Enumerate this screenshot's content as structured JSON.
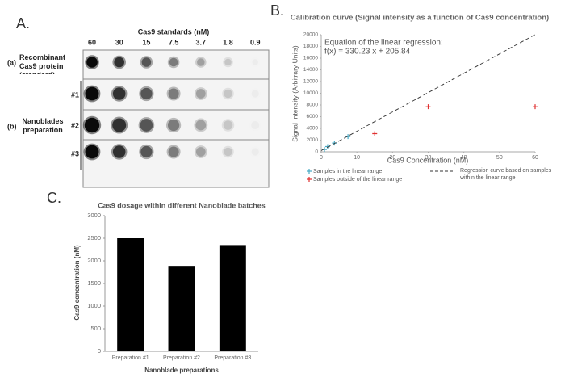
{
  "panel_labels": [
    "A.",
    "B.",
    "C."
  ],
  "blot": {
    "header": "Cas9 standards (nM)",
    "concentrations": [
      60,
      30,
      15,
      7.5,
      3.7,
      1.8,
      0.9
    ],
    "groups": [
      {
        "tag": "(a)",
        "label": "Recombinant Cas9 protein (standard)"
      },
      {
        "tag": "(b)",
        "label": "Nanoblades preparation"
      }
    ],
    "batches": [
      "#1",
      "#2",
      "#3"
    ]
  },
  "chart_data": [
    {
      "type": "scatter",
      "title": "Calibration curve (Signal intensity as a function of Cas9 concentration)",
      "x_label": "Cas9 Concentration (nM)",
      "y_label": "Signal Intensity (Arbitrary Units)",
      "annotations": [
        "Equation of the linear regression:",
        "f(x) = 330.23 x + 205.84"
      ],
      "xlim": [
        0,
        60
      ],
      "xticks": [
        0,
        10,
        20,
        30,
        40,
        50,
        60
      ],
      "ylim": [
        0,
        20000
      ],
      "yticks": [
        0,
        2000,
        4000,
        6000,
        8000,
        10000,
        12000,
        14000,
        16000,
        18000,
        20000
      ],
      "grid": false,
      "series": [
        {
          "name": "Samples in the linear range",
          "color": "#4bacc6",
          "marker": "+",
          "x": [
            0.9,
            1.8,
            3.7,
            7.5
          ],
          "values": [
            400,
            900,
            1500,
            2600
          ]
        },
        {
          "name": "Samples outside of the linear range",
          "color": "#e03030",
          "marker": "+",
          "x": [
            15,
            30,
            60
          ],
          "values": [
            3100,
            7700,
            7700
          ]
        },
        {
          "name": "Regression curve based on samples within the linear range",
          "color": "#333333",
          "marker": "dashed-line",
          "x": [
            0,
            60
          ],
          "values": [
            205.84,
            20019.64
          ]
        }
      ]
    },
    {
      "type": "bar",
      "title": "Cas9 dosage within different Nanoblade batches",
      "x_label": "Nanoblade preparations",
      "y_label": "Cas9 concentration (nM)",
      "categories": [
        "Preparation #1",
        "Preparation #2",
        "Preparation #3"
      ],
      "values": [
        2500,
        1890,
        2350
      ],
      "color": "#000000",
      "ylim": [
        0,
        3000
      ],
      "yticks": [
        0,
        500,
        1000,
        1500,
        2000,
        2500,
        3000
      ],
      "grid": false
    }
  ]
}
